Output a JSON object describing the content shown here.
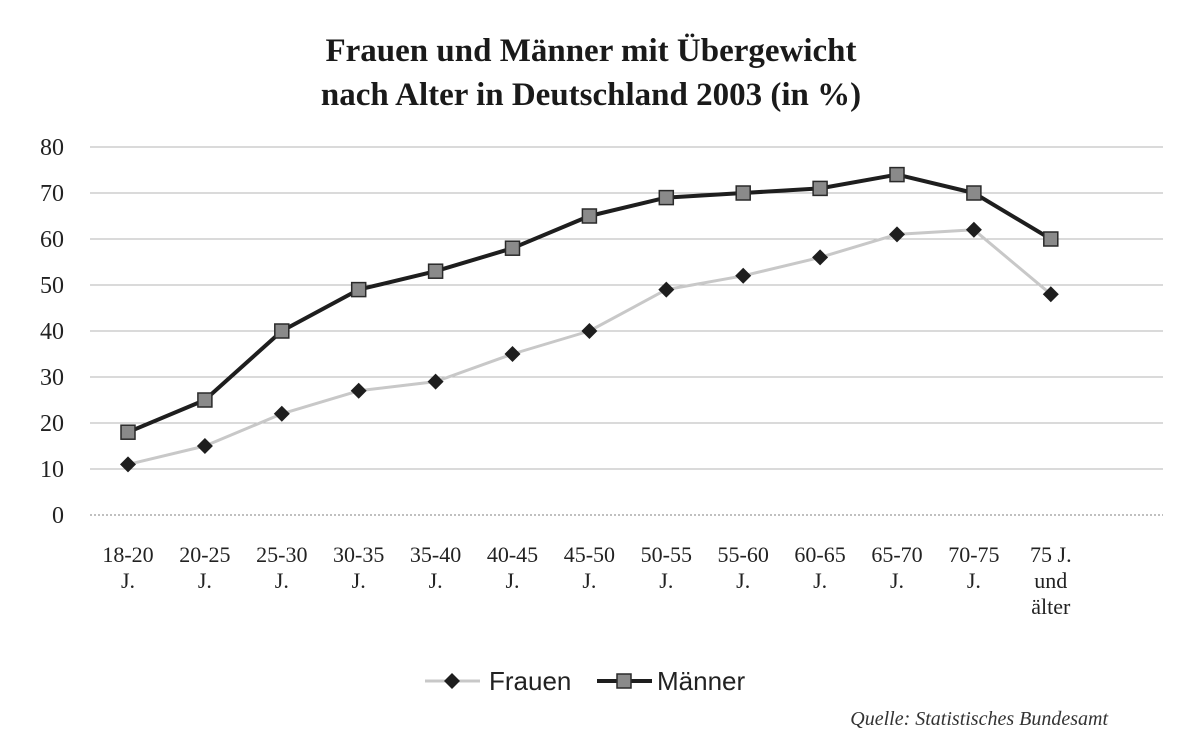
{
  "chart_data": {
    "type": "line",
    "title_lines": [
      "Frauen und Männer mit Übergewicht",
      "nach Alter in Deutschland 2003 (in %)"
    ],
    "categories": [
      [
        "18-20",
        "J."
      ],
      [
        "20-25",
        "J."
      ],
      [
        "25-30",
        "J."
      ],
      [
        "30-35",
        "J."
      ],
      [
        "35-40",
        "J."
      ],
      [
        "40-45",
        "J."
      ],
      [
        "45-50",
        "J."
      ],
      [
        "50-55",
        "J."
      ],
      [
        "55-60",
        "J."
      ],
      [
        "60-65",
        "J."
      ],
      [
        "65-70",
        "J."
      ],
      [
        "70-75",
        "J."
      ],
      [
        "75 J.",
        "und",
        "älter"
      ]
    ],
    "y_ticks": [
      "0",
      "10",
      "20",
      "30",
      "40",
      "50",
      "60",
      "70",
      "80"
    ],
    "ylim": [
      0,
      80
    ],
    "grid": true,
    "legend_position": "bottom",
    "series": [
      {
        "name": "Frauen",
        "marker": "diamond",
        "line_color": "#c8c8c8",
        "marker_color": "#1e1e1e",
        "values": [
          11,
          15,
          22,
          27,
          29,
          35,
          40,
          49,
          52,
          56,
          61,
          62,
          48
        ]
      },
      {
        "name": "Männer",
        "marker": "square",
        "line_color": "#1e1e1e",
        "marker_color": "#8a8a8a",
        "values": [
          18,
          25,
          40,
          49,
          53,
          58,
          65,
          69,
          70,
          71,
          74,
          70,
          60
        ]
      }
    ]
  },
  "source_note": "Quelle: Statistisches Bundesamt"
}
